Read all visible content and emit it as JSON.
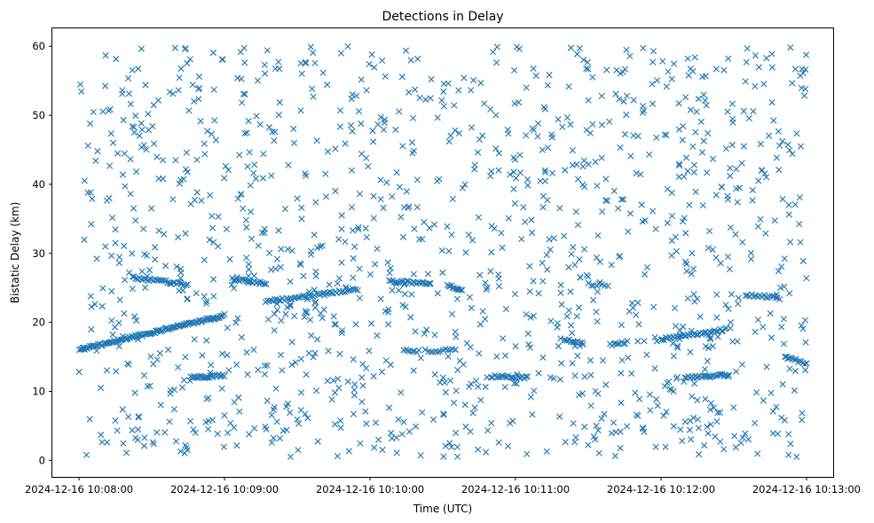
{
  "chart_data": {
    "type": "scatter",
    "title": "Detections in Delay",
    "xlabel": "Time (UTC)",
    "ylabel": "Bistatic Delay (km)",
    "marker": "x",
    "color": "#1f77b4",
    "grid": false,
    "xlim": [
      "2024-12-16 10:07:49",
      "2024-12-16 10:13:11"
    ],
    "ylim": [
      -2.4,
      62.6
    ],
    "x_ticks": [
      "2024-12-16 10:08:00",
      "2024-12-16 10:09:00",
      "2024-12-16 10:10:00",
      "2024-12-16 10:11:00",
      "2024-12-16 10:12:00",
      "2024-12-16 10:13:00"
    ],
    "y_ticks": [
      0,
      10,
      20,
      30,
      40,
      50,
      60
    ],
    "random_clutter": {
      "count": 1300,
      "x_range": [
        "2024-12-16 10:08:00",
        "2024-12-16 10:13:00"
      ],
      "y_range": [
        0.5,
        60
      ]
    },
    "tracks": [
      {
        "x_start": "2024-12-16 10:08:00",
        "x_end": "2024-12-16 10:09:00",
        "y_start": 16.0,
        "y_end": 21.0,
        "points": 120
      },
      {
        "x_start": "2024-12-16 10:08:22",
        "x_end": "2024-12-16 10:08:43",
        "y_start": 26.5,
        "y_end": 25.5,
        "points": 30
      },
      {
        "x_start": "2024-12-16 10:08:46",
        "x_end": "2024-12-16 10:09:00",
        "y_start": 12.0,
        "y_end": 12.3,
        "points": 25
      },
      {
        "x_start": "2024-12-16 10:09:03",
        "x_end": "2024-12-16 10:09:17",
        "y_start": 26.3,
        "y_end": 25.6,
        "points": 22
      },
      {
        "x_start": "2024-12-16 10:09:17",
        "x_end": "2024-12-16 10:09:55",
        "y_start": 23.0,
        "y_end": 24.8,
        "points": 50
      },
      {
        "x_start": "2024-12-16 10:10:08",
        "x_end": "2024-12-16 10:10:25",
        "y_start": 26.0,
        "y_end": 25.5,
        "points": 25
      },
      {
        "x_start": "2024-12-16 10:10:14",
        "x_end": "2024-12-16 10:10:20",
        "y_start": 16.0,
        "y_end": 15.8,
        "points": 8
      },
      {
        "x_start": "2024-12-16 10:10:24",
        "x_end": "2024-12-16 10:10:35",
        "y_start": 15.7,
        "y_end": 16.2,
        "points": 12
      },
      {
        "x_start": "2024-12-16 10:10:32",
        "x_end": "2024-12-16 10:10:38",
        "y_start": 25.5,
        "y_end": 24.5,
        "points": 12
      },
      {
        "x_start": "2024-12-16 10:10:50",
        "x_end": "2024-12-16 10:11:05",
        "y_start": 12.2,
        "y_end": 12.0,
        "points": 22
      },
      {
        "x_start": "2024-12-16 10:11:20",
        "x_end": "2024-12-16 10:11:28",
        "y_start": 17.5,
        "y_end": 16.9,
        "points": 12
      },
      {
        "x_start": "2024-12-16 10:11:30",
        "x_end": "2024-12-16 10:11:38",
        "y_start": 25.5,
        "y_end": 25.4,
        "points": 8
      },
      {
        "x_start": "2024-12-16 10:11:39",
        "x_end": "2024-12-16 10:11:46",
        "y_start": 16.8,
        "y_end": 17.1,
        "points": 10
      },
      {
        "x_start": "2024-12-16 10:12:00",
        "x_end": "2024-12-16 10:12:27",
        "y_start": 17.5,
        "y_end": 19.0,
        "points": 40
      },
      {
        "x_start": "2024-12-16 10:12:10",
        "x_end": "2024-12-16 10:12:28",
        "y_start": 12.0,
        "y_end": 12.4,
        "points": 28
      },
      {
        "x_start": "2024-12-16 10:12:35",
        "x_end": "2024-12-16 10:12:49",
        "y_start": 24.0,
        "y_end": 23.5,
        "points": 18
      },
      {
        "x_start": "2024-12-16 10:12:51",
        "x_end": "2024-12-16 10:13:00",
        "y_start": 15.0,
        "y_end": 14.0,
        "points": 14
      }
    ]
  }
}
